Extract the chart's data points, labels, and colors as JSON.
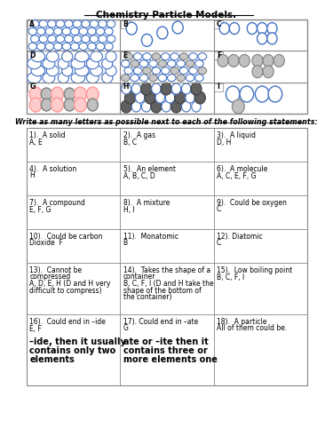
{
  "title": "Chemistry Particle Models.",
  "subtitle": "Write as many letters as possible next to each of the following statements:",
  "table_cells": [
    [
      "1).  A solid\nA, E",
      "2).  A gas\nB, C",
      "3).  A liquid\nD, H"
    ],
    [
      "4).  A solution\nH",
      "5).  An element\nA, B, C, D",
      "6).  A molecule\nA, C, E, F, G"
    ],
    [
      "7).  A compound\nE, F, G",
      "8).  A mixture\nH, I",
      "9).  Could be oxygen\nC"
    ],
    [
      "10).  Could be carbon\nDioxide  F",
      "11).  Monatomic\nB",
      "12). Diatomic\nC"
    ],
    [
      "13).  Cannot be\ncompressed\nA, D, E, H (D and H very\ndifficult to compress)",
      "14).  Takes the shape of a\ncontainer\nB, C, F, I (D and H take the\nshape of the bottom of\nthe container)",
      "15).  Low boiling point\nB, C, F, I"
    ],
    [
      "16).  Could end in –ide\nE, F\n\n–ide, then it usually\ncontains only two\nelements",
      "17). Could end in –ate\nG\n\nate or –ite then it\ncontains three or\nmore elements one",
      "18).  A particle\nAll of them could be."
    ]
  ],
  "bg_color": "#ffffff",
  "grid_color": "#888888",
  "text_color": "#000000",
  "circle_blue": "#4472c4",
  "circle_gray": "#808080",
  "circle_pink": "#ff9999",
  "circle_dark": "#404040"
}
